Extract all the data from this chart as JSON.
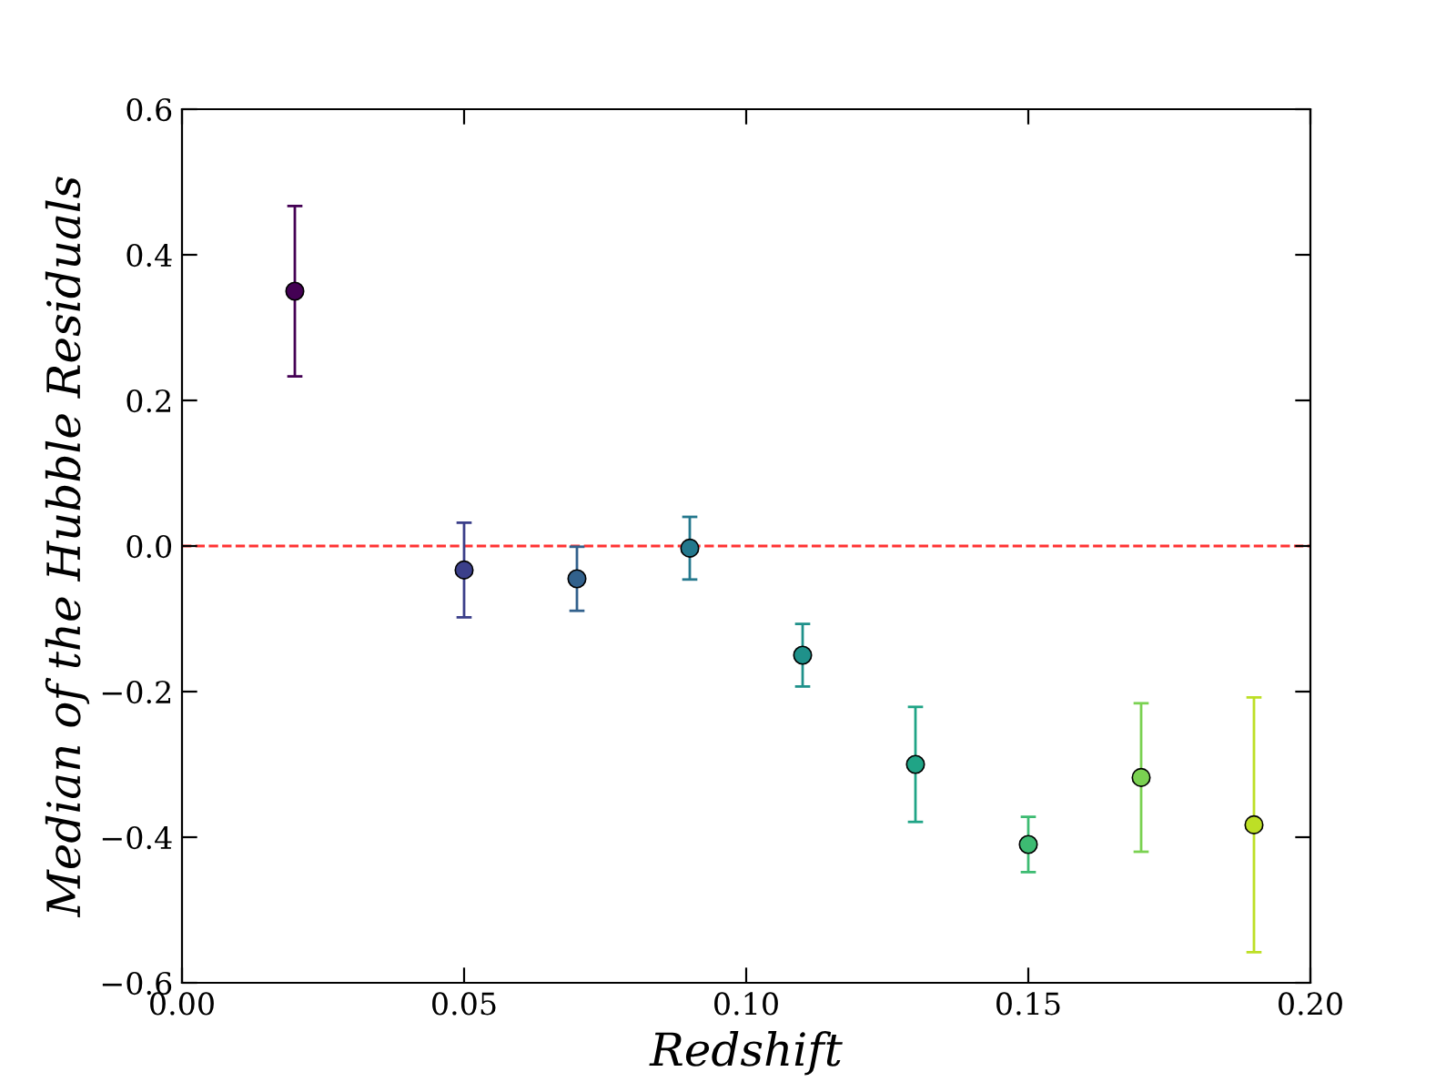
{
  "chart_data": {
    "type": "scatter",
    "xlabel": "Redshift",
    "ylabel": "Median of the Hubble Residuals",
    "x": [
      0.02,
      0.05,
      0.07,
      0.09,
      0.11,
      0.13,
      0.15,
      0.17,
      0.19
    ],
    "values": [
      0.35,
      -0.033,
      -0.045,
      -0.003,
      -0.15,
      -0.3,
      -0.41,
      -0.318,
      -0.383
    ],
    "errors": [
      0.117,
      0.065,
      0.044,
      0.043,
      0.043,
      0.079,
      0.038,
      0.102,
      0.175
    ],
    "colors": [
      "#440154",
      "#3b3f8a",
      "#32618c",
      "#24788d",
      "#1f918a",
      "#20a486",
      "#3dbb72",
      "#7ad151",
      "#bddf26"
    ],
    "marker": "circle",
    "ref_lines": [
      {
        "axis": "y",
        "value": 0,
        "color": "#ff0000",
        "line_style": "dashed"
      }
    ],
    "xlim": [
      0.0,
      0.2
    ],
    "xticks": [
      {
        "value": 0,
        "label": "0.00"
      },
      {
        "value": 0.05,
        "label": "0.05"
      },
      {
        "value": 0.1,
        "label": "0.10"
      },
      {
        "value": 0.15,
        "label": "0.15"
      },
      {
        "value": 0.2,
        "label": "0.20"
      }
    ],
    "ylim": [
      -0.6,
      0.6
    ],
    "yticks": [
      {
        "value": -0.6,
        "label": "−0.6"
      },
      {
        "value": -0.4,
        "label": "−0.4"
      },
      {
        "value": -0.2,
        "label": "−0.2"
      },
      {
        "value": 0,
        "label": "0.0"
      },
      {
        "value": 0.2,
        "label": "0.2"
      },
      {
        "value": 0.4,
        "label": "0.4"
      },
      {
        "value": 0.6,
        "label": "0.6"
      }
    ],
    "grid": false,
    "legend": false
  }
}
